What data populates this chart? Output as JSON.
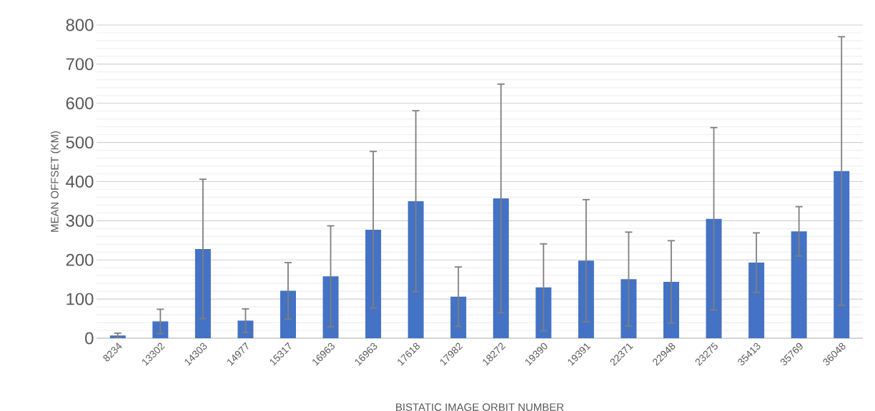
{
  "chart_data": {
    "type": "bar",
    "xlabel": "BISTATIC IMAGE ORBIT NUMBER",
    "ylabel": "MEAN OFFSET (KM)",
    "categories": [
      "8234",
      "13302",
      "14303",
      "14977",
      "15317",
      "16963",
      "16963",
      "17618",
      "17982",
      "18272",
      "19390",
      "19391",
      "22371",
      "22948",
      "23275",
      "35413",
      "35769",
      "36048"
    ],
    "values": [
      7,
      43,
      228,
      45,
      121,
      158,
      277,
      350,
      106,
      357,
      130,
      198,
      151,
      144,
      305,
      193,
      273,
      427
    ],
    "errors": [
      6,
      31,
      178,
      30,
      72,
      129,
      200,
      231,
      76,
      292,
      111,
      156,
      120,
      105,
      233,
      76,
      63,
      343
    ],
    "color": "#4472c4",
    "ylim": [
      0,
      800
    ],
    "yticks": [
      0,
      100,
      200,
      300,
      400,
      500,
      600,
      700,
      800
    ],
    "grid": "y"
  }
}
